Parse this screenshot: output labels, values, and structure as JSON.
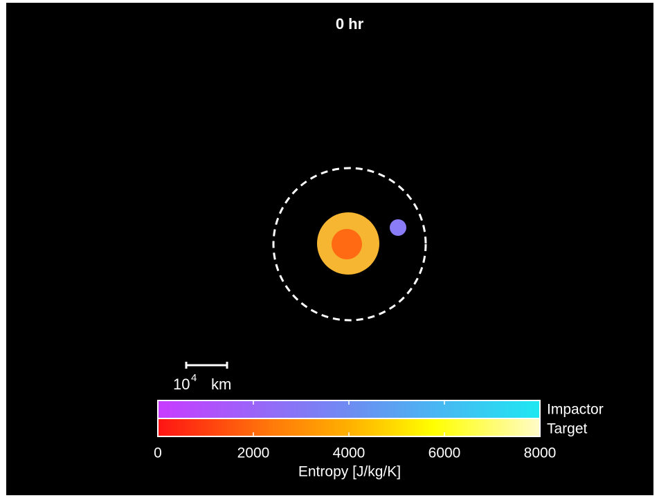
{
  "title": "0 hr",
  "scale_bar": {
    "base": "10",
    "exponent": "4",
    "unit": "km"
  },
  "colorbar": {
    "rows": [
      "Impactor",
      "Target"
    ],
    "lim": [
      0,
      8000
    ],
    "ticks": [
      0,
      2000,
      4000,
      6000,
      8000
    ],
    "label": "Entropy [J/kg/K]"
  }
}
